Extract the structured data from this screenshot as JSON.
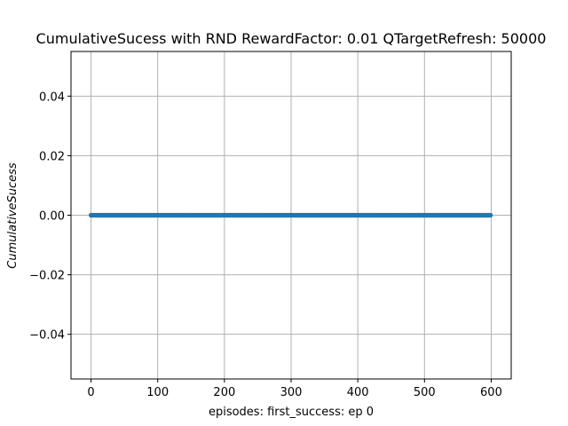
{
  "chart_data": {
    "type": "line",
    "title": "CumulativeSucess with RND RewardFactor: 0.01 QTargetRefresh: 50000",
    "xlabel": "episodes: first_success: ep 0",
    "ylabel": "CumulativeSucess",
    "xlim": [
      -30,
      630
    ],
    "ylim": [
      -0.055,
      0.055
    ],
    "xticks": [
      0,
      100,
      200,
      300,
      400,
      500,
      600
    ],
    "xtick_labels": [
      "0",
      "100",
      "200",
      "300",
      "400",
      "500",
      "600"
    ],
    "yticks": [
      -0.04,
      -0.02,
      0.0,
      0.02,
      0.04
    ],
    "ytick_labels": [
      "−0.04",
      "−0.02",
      "0.00",
      "0.02",
      "0.04"
    ],
    "grid": true,
    "series": [
      {
        "color": "#1f77b4",
        "marker": "circle",
        "x_start": 0,
        "x_end": 599,
        "x_step": 1,
        "constant_y": 0.0
      }
    ]
  }
}
